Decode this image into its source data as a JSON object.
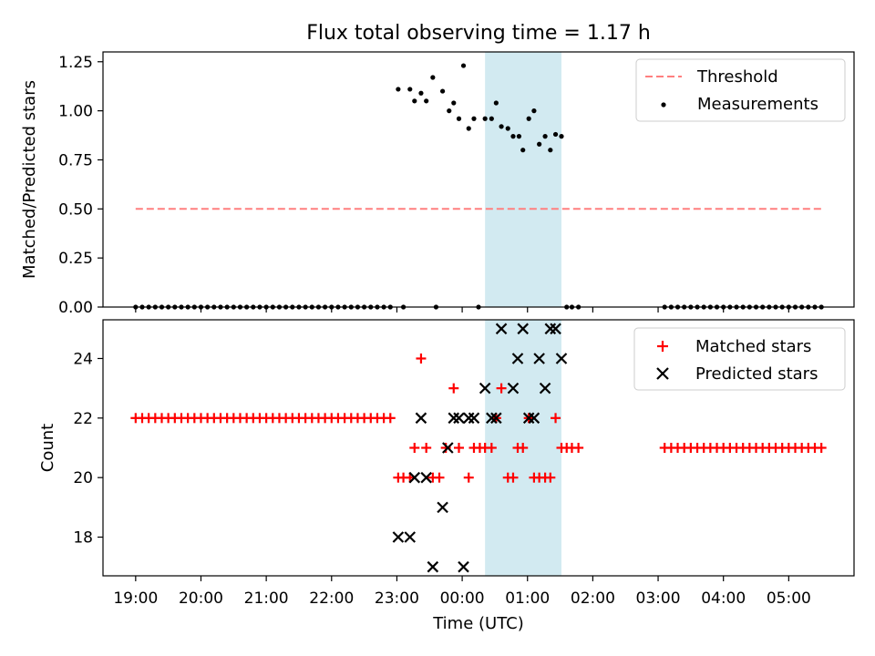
{
  "chart_data": [
    {
      "type": "scatter",
      "title": "Flux total observing time = 1.17 h",
      "ylabel": "Matched/Predicted stars",
      "ylim": [
        0,
        1.3
      ],
      "yticks": [
        0.0,
        0.25,
        0.5,
        0.75,
        1.0,
        1.25
      ],
      "ytick_labels": [
        "0.00",
        "0.25",
        "0.50",
        "0.75",
        "1.00",
        "1.25"
      ],
      "xlim": [
        -0.5,
        11.0
      ],
      "xticks": [
        0,
        1,
        2,
        3,
        4,
        5,
        6,
        7,
        8,
        9,
        10
      ],
      "grid": false,
      "legend_position": "top-right",
      "highlight_span": [
        5.35,
        6.52
      ],
      "highlight_color": "#add8e6",
      "threshold": {
        "name": "Threshold",
        "value": 0.5,
        "x_range": [
          0.0,
          10.5
        ],
        "color": "#ff7f7f",
        "style": "dashed"
      },
      "measurements": {
        "name": "Measurements",
        "color": "#000000",
        "points": [
          [
            0.0,
            0
          ],
          [
            0.1,
            0
          ],
          [
            0.2,
            0
          ],
          [
            0.3,
            0
          ],
          [
            0.4,
            0
          ],
          [
            0.5,
            0
          ],
          [
            0.6,
            0
          ],
          [
            0.7,
            0
          ],
          [
            0.8,
            0
          ],
          [
            0.9,
            0
          ],
          [
            1.0,
            0
          ],
          [
            1.1,
            0
          ],
          [
            1.2,
            0
          ],
          [
            1.3,
            0
          ],
          [
            1.4,
            0
          ],
          [
            1.5,
            0
          ],
          [
            1.6,
            0
          ],
          [
            1.7,
            0
          ],
          [
            1.8,
            0
          ],
          [
            1.9,
            0
          ],
          [
            2.0,
            0
          ],
          [
            2.1,
            0
          ],
          [
            2.2,
            0
          ],
          [
            2.3,
            0
          ],
          [
            2.4,
            0
          ],
          [
            2.5,
            0
          ],
          [
            2.6,
            0
          ],
          [
            2.7,
            0
          ],
          [
            2.8,
            0
          ],
          [
            2.9,
            0
          ],
          [
            3.0,
            0
          ],
          [
            3.1,
            0
          ],
          [
            3.2,
            0
          ],
          [
            3.3,
            0
          ],
          [
            3.4,
            0
          ],
          [
            3.5,
            0
          ],
          [
            3.6,
            0
          ],
          [
            3.7,
            0
          ],
          [
            3.8,
            0
          ],
          [
            3.9,
            0
          ],
          [
            4.1,
            0
          ],
          [
            4.6,
            0
          ],
          [
            5.25,
            0
          ],
          [
            4.02,
            1.11
          ],
          [
            4.2,
            1.11
          ],
          [
            4.27,
            1.05
          ],
          [
            4.37,
            1.09
          ],
          [
            4.45,
            1.05
          ],
          [
            4.55,
            1.17
          ],
          [
            4.7,
            1.1
          ],
          [
            4.8,
            1.0
          ],
          [
            4.87,
            1.04
          ],
          [
            4.95,
            0.96
          ],
          [
            5.02,
            1.23
          ],
          [
            5.1,
            0.91
          ],
          [
            5.18,
            0.96
          ],
          [
            5.35,
            0.96
          ],
          [
            5.45,
            0.96
          ],
          [
            5.52,
            1.04
          ],
          [
            5.6,
            0.92
          ],
          [
            5.7,
            0.91
          ],
          [
            5.78,
            0.87
          ],
          [
            5.87,
            0.87
          ],
          [
            5.93,
            0.8
          ],
          [
            6.02,
            0.96
          ],
          [
            6.1,
            1.0
          ],
          [
            6.18,
            0.83
          ],
          [
            6.27,
            0.87
          ],
          [
            6.35,
            0.8
          ],
          [
            6.43,
            0.88
          ],
          [
            6.52,
            0.87
          ],
          [
            6.6,
            0
          ],
          [
            6.68,
            0
          ],
          [
            6.78,
            0
          ],
          [
            8.1,
            0
          ],
          [
            8.2,
            0
          ],
          [
            8.3,
            0
          ],
          [
            8.4,
            0
          ],
          [
            8.5,
            0
          ],
          [
            8.6,
            0
          ],
          [
            8.7,
            0
          ],
          [
            8.8,
            0
          ],
          [
            8.9,
            0
          ],
          [
            9.0,
            0
          ],
          [
            9.1,
            0
          ],
          [
            9.2,
            0
          ],
          [
            9.3,
            0
          ],
          [
            9.4,
            0
          ],
          [
            9.5,
            0
          ],
          [
            9.6,
            0
          ],
          [
            9.7,
            0
          ],
          [
            9.8,
            0
          ],
          [
            9.9,
            0
          ],
          [
            10.0,
            0
          ],
          [
            10.1,
            0
          ],
          [
            10.2,
            0
          ],
          [
            10.3,
            0
          ],
          [
            10.4,
            0
          ],
          [
            10.5,
            0
          ]
        ]
      }
    },
    {
      "type": "scatter",
      "xlabel": "Time (UTC)",
      "ylabel": "Count",
      "ylim": [
        16.7,
        25.3
      ],
      "yticks": [
        18,
        20,
        22,
        24
      ],
      "ytick_labels": [
        "18",
        "20",
        "22",
        "24"
      ],
      "xlim": [
        -0.5,
        11.0
      ],
      "xticks": [
        0,
        1,
        2,
        3,
        4,
        5,
        6,
        7,
        8,
        9,
        10
      ],
      "xtick_labels": [
        "19:00",
        "20:00",
        "21:00",
        "22:00",
        "23:00",
        "00:00",
        "01:00",
        "02:00",
        "03:00",
        "04:00",
        "05:00"
      ],
      "grid": false,
      "legend_position": "top-right",
      "highlight_span": [
        5.35,
        6.52
      ],
      "highlight_color": "#add8e6",
      "matched": {
        "name": "Matched stars",
        "color": "#ff0000",
        "points": [
          [
            0.0,
            22
          ],
          [
            0.1,
            22
          ],
          [
            0.2,
            22
          ],
          [
            0.3,
            22
          ],
          [
            0.4,
            22
          ],
          [
            0.5,
            22
          ],
          [
            0.6,
            22
          ],
          [
            0.7,
            22
          ],
          [
            0.8,
            22
          ],
          [
            0.9,
            22
          ],
          [
            1.0,
            22
          ],
          [
            1.1,
            22
          ],
          [
            1.2,
            22
          ],
          [
            1.3,
            22
          ],
          [
            1.4,
            22
          ],
          [
            1.5,
            22
          ],
          [
            1.6,
            22
          ],
          [
            1.7,
            22
          ],
          [
            1.8,
            22
          ],
          [
            1.9,
            22
          ],
          [
            2.0,
            22
          ],
          [
            2.1,
            22
          ],
          [
            2.2,
            22
          ],
          [
            2.3,
            22
          ],
          [
            2.4,
            22
          ],
          [
            2.5,
            22
          ],
          [
            2.6,
            22
          ],
          [
            2.7,
            22
          ],
          [
            2.8,
            22
          ],
          [
            2.9,
            22
          ],
          [
            3.0,
            22
          ],
          [
            3.1,
            22
          ],
          [
            3.2,
            22
          ],
          [
            3.3,
            22
          ],
          [
            3.4,
            22
          ],
          [
            3.5,
            22
          ],
          [
            3.6,
            22
          ],
          [
            3.7,
            22
          ],
          [
            3.8,
            22
          ],
          [
            3.9,
            22
          ],
          [
            4.02,
            20
          ],
          [
            4.1,
            20
          ],
          [
            4.2,
            20
          ],
          [
            4.27,
            21
          ],
          [
            4.37,
            24
          ],
          [
            4.45,
            21
          ],
          [
            4.55,
            20
          ],
          [
            4.65,
            20
          ],
          [
            4.75,
            21
          ],
          [
            4.87,
            23
          ],
          [
            4.95,
            21
          ],
          [
            5.1,
            20
          ],
          [
            5.18,
            21
          ],
          [
            5.27,
            21
          ],
          [
            5.35,
            21
          ],
          [
            5.45,
            21
          ],
          [
            5.52,
            22
          ],
          [
            5.6,
            23
          ],
          [
            5.7,
            20
          ],
          [
            5.78,
            20
          ],
          [
            5.85,
            21
          ],
          [
            5.93,
            21
          ],
          [
            6.02,
            22
          ],
          [
            6.1,
            20
          ],
          [
            6.18,
            20
          ],
          [
            6.27,
            20
          ],
          [
            6.35,
            20
          ],
          [
            6.43,
            22
          ],
          [
            6.52,
            21
          ],
          [
            6.6,
            21
          ],
          [
            6.68,
            21
          ],
          [
            6.78,
            21
          ],
          [
            8.1,
            21
          ],
          [
            8.2,
            21
          ],
          [
            8.3,
            21
          ],
          [
            8.4,
            21
          ],
          [
            8.5,
            21
          ],
          [
            8.6,
            21
          ],
          [
            8.7,
            21
          ],
          [
            8.8,
            21
          ],
          [
            8.9,
            21
          ],
          [
            9.0,
            21
          ],
          [
            9.1,
            21
          ],
          [
            9.2,
            21
          ],
          [
            9.3,
            21
          ],
          [
            9.4,
            21
          ],
          [
            9.5,
            21
          ],
          [
            9.6,
            21
          ],
          [
            9.7,
            21
          ],
          [
            9.8,
            21
          ],
          [
            9.9,
            21
          ],
          [
            10.0,
            21
          ],
          [
            10.1,
            21
          ],
          [
            10.2,
            21
          ],
          [
            10.3,
            21
          ],
          [
            10.4,
            21
          ],
          [
            10.5,
            21
          ]
        ]
      },
      "predicted": {
        "name": "Predicted stars",
        "color": "#000000",
        "points": [
          [
            4.02,
            18
          ],
          [
            4.2,
            18
          ],
          [
            4.27,
            20
          ],
          [
            4.37,
            22
          ],
          [
            4.45,
            20
          ],
          [
            4.55,
            17
          ],
          [
            4.7,
            19
          ],
          [
            4.78,
            21
          ],
          [
            4.87,
            22
          ],
          [
            4.95,
            22
          ],
          [
            5.02,
            17
          ],
          [
            5.1,
            22
          ],
          [
            5.18,
            22
          ],
          [
            5.35,
            23
          ],
          [
            5.45,
            22
          ],
          [
            5.52,
            22
          ],
          [
            5.6,
            25
          ],
          [
            5.78,
            23
          ],
          [
            5.85,
            24
          ],
          [
            5.93,
            25
          ],
          [
            6.02,
            22
          ],
          [
            6.1,
            22
          ],
          [
            6.18,
            24
          ],
          [
            6.27,
            23
          ],
          [
            6.35,
            25
          ],
          [
            6.43,
            25
          ],
          [
            6.52,
            24
          ]
        ]
      }
    }
  ]
}
